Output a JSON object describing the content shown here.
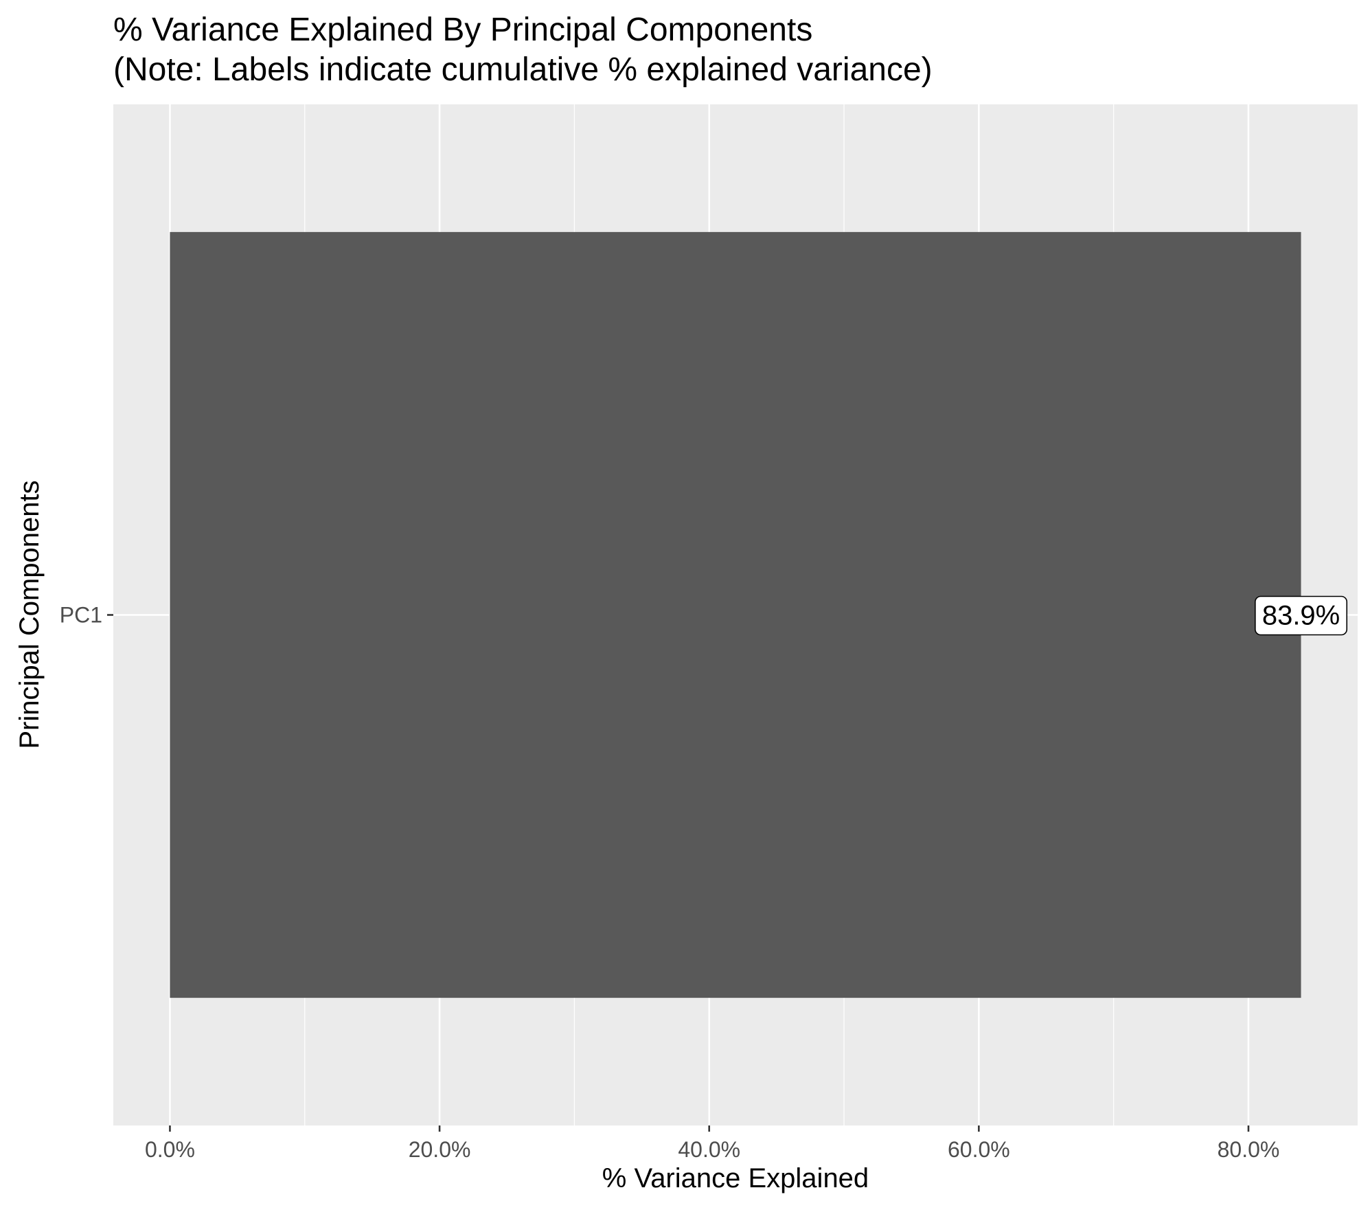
{
  "chart_data": {
    "type": "bar",
    "orientation": "horizontal",
    "title": "% Variance Explained By Principal Components",
    "subtitle": "(Note: Labels indicate cumulative % explained variance)",
    "xlabel": "% Variance Explained",
    "ylabel": "Principal Components",
    "categories": [
      "PC1"
    ],
    "values": [
      83.9
    ],
    "data_labels": [
      "83.9%"
    ],
    "xlim": [
      -4.2,
      88.1
    ],
    "x_ticks": [
      0,
      20,
      40,
      60,
      80
    ],
    "x_tick_labels": [
      "0.0%",
      "20.0%",
      "40.0%",
      "60.0%",
      "80.0%"
    ],
    "grid": true,
    "legend": "none",
    "colors": {
      "bar": "#595959",
      "panel_background": "#ebebeb",
      "grid": "#ffffff",
      "tick_text": "#4d4d4d"
    }
  }
}
